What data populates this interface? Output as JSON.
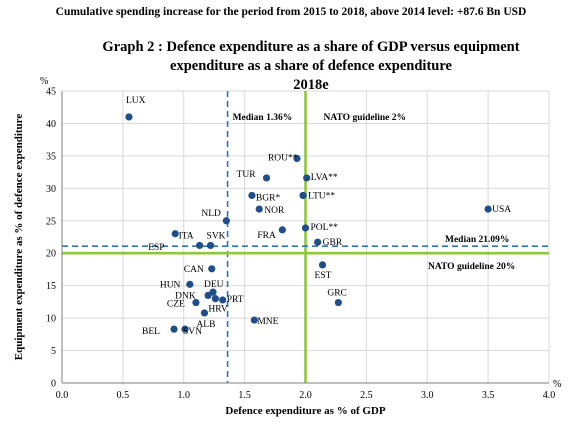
{
  "top_note": "Cumulative spending increase for the period from 2015 to 2018, above 2014 level: +87.6 Bn USD",
  "title_line1": "Graph 2 : Defence expenditure as a share of GDP versus equipment",
  "title_line2": "expenditure as a share of defence expenditure",
  "title_line3": "2018e",
  "colors": {
    "point": "#1f4e8c",
    "nato": "#8dc63f",
    "median": "#2e75b6"
  },
  "chart_data": {
    "type": "scatter",
    "xlabel": "Defence expenditure as % of GDP",
    "ylabel": "Equipment expenditure as % of defence expenditure",
    "x_unit": "%",
    "y_unit": "%",
    "xlim": [
      0,
      4
    ],
    "ylim": [
      0,
      45
    ],
    "xticks": [
      "0.0",
      "0.5",
      "1.0",
      "1.5",
      "2.0",
      "2.5",
      "3.0",
      "3.5",
      "4.0"
    ],
    "yticks": [
      "0",
      "5",
      "10",
      "15",
      "20",
      "25",
      "30",
      "35",
      "40",
      "45"
    ],
    "grid": true,
    "reference_lines": [
      {
        "label": "Median 1.36%",
        "axis": "x",
        "value": 1.36,
        "style": "dashed"
      },
      {
        "label": "NATO guideline 2%",
        "axis": "x",
        "value": 2.0,
        "style": "solid"
      },
      {
        "label": "Median 21.09%",
        "axis": "y",
        "value": 21.09,
        "style": "dashed"
      },
      {
        "label": "NATO guideline 20%",
        "axis": "y",
        "value": 20.0,
        "style": "solid"
      }
    ],
    "points": [
      {
        "label": "LUX",
        "x": 0.55,
        "y": 41.0
      },
      {
        "label": "ROU**",
        "x": 1.93,
        "y": 34.6
      },
      {
        "label": "TUR",
        "x": 1.68,
        "y": 31.6
      },
      {
        "label": "LVA**",
        "x": 2.01,
        "y": 31.6
      },
      {
        "label": "BGR*",
        "x": 1.56,
        "y": 28.9
      },
      {
        "label": "LTU**",
        "x": 1.98,
        "y": 28.9
      },
      {
        "label": "NOR",
        "x": 1.62,
        "y": 26.8
      },
      {
        "label": "USA",
        "x": 3.5,
        "y": 26.8
      },
      {
        "label": "NLD",
        "x": 1.35,
        "y": 25.0
      },
      {
        "label": "POL**",
        "x": 2.0,
        "y": 23.9
      },
      {
        "label": "FRA",
        "x": 1.81,
        "y": 23.6
      },
      {
        "label": "GBR",
        "x": 2.1,
        "y": 21.7
      },
      {
        "label": "ESP",
        "x": 0.93,
        "y": 23.0
      },
      {
        "label": "ITA",
        "x": 1.13,
        "y": 21.2
      },
      {
        "label": "SVK",
        "x": 1.22,
        "y": 21.2
      },
      {
        "label": "CAN",
        "x": 1.23,
        "y": 17.6
      },
      {
        "label": "EST",
        "x": 2.14,
        "y": 18.2
      },
      {
        "label": "HUN",
        "x": 1.05,
        "y": 15.2
      },
      {
        "label": "DEU",
        "x": 1.24,
        "y": 14.0
      },
      {
        "label": "DNK",
        "x": 1.2,
        "y": 13.5
      },
      {
        "label": "PRT",
        "x": 1.32,
        "y": 12.8
      },
      {
        "label": "HRV",
        "x": 1.26,
        "y": 13.0
      },
      {
        "label": "CZE",
        "x": 1.1,
        "y": 12.4
      },
      {
        "label": "GRC",
        "x": 2.27,
        "y": 12.4
      },
      {
        "label": "ALB",
        "x": 1.17,
        "y": 10.8
      },
      {
        "label": "MNE",
        "x": 1.58,
        "y": 9.7
      },
      {
        "label": "BEL",
        "x": 0.92,
        "y": 8.3
      },
      {
        "label": "SVN",
        "x": 1.01,
        "y": 8.3
      }
    ]
  }
}
